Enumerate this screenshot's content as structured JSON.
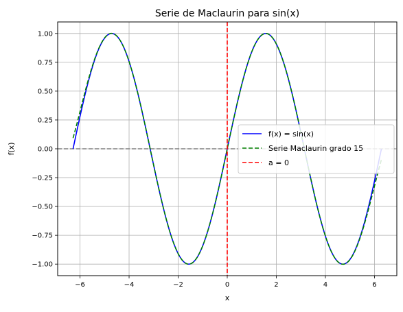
{
  "chart_data": {
    "type": "line",
    "title": "Serie de Maclaurin para sin(x)",
    "xlabel": "x",
    "ylabel": "f(x)",
    "xlim": [
      -6.91,
      6.91
    ],
    "ylim": [
      -1.1,
      1.1
    ],
    "grid": true,
    "legend_position": "center-right",
    "x_ticks": [
      -6,
      -4,
      -2,
      0,
      2,
      4,
      6
    ],
    "x_tick_labels": [
      "−6",
      "−4",
      "−2",
      "0",
      "2",
      "4",
      "6"
    ],
    "y_ticks": [
      -1.0,
      -0.75,
      -0.5,
      -0.25,
      0.0,
      0.25,
      0.5,
      0.75,
      1.0
    ],
    "y_tick_labels": [
      "−1.00",
      "−0.75",
      "−0.50",
      "−0.25",
      "0.00",
      "0.25",
      "0.50",
      "0.75",
      "1.00"
    ],
    "x_range": [
      -6.283,
      6.283
    ],
    "series": [
      {
        "name": "f(x) = sin(x)",
        "function": "sin",
        "color": "#0000ff",
        "style": "solid"
      },
      {
        "name": "Serie Maclaurin grado 15",
        "function": "maclaurin_sin",
        "degree": 15,
        "color": "#008000",
        "style": "dashed"
      }
    ],
    "reference_lines": [
      {
        "name": "a = 0",
        "orientation": "vertical",
        "x": 0,
        "color": "#ff0000",
        "style": "dashed",
        "in_legend": true
      },
      {
        "orientation": "horizontal",
        "y": 0,
        "color": "#808080",
        "style": "dashed",
        "in_legend": false
      }
    ]
  }
}
